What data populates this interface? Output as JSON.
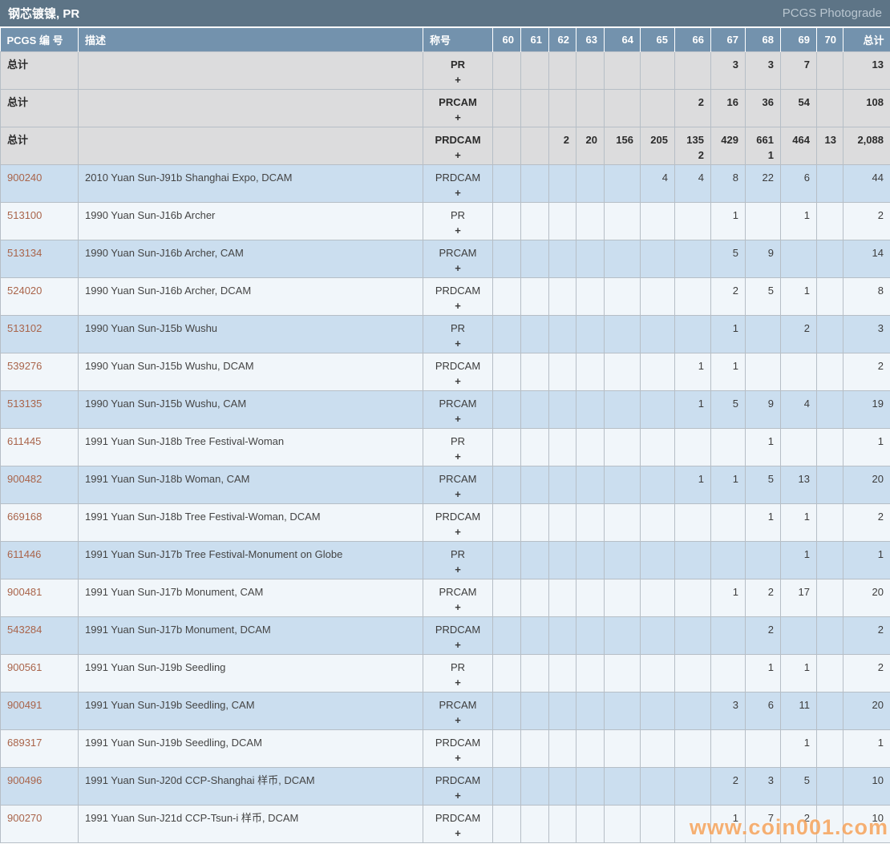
{
  "title_bar": {
    "title": "钢芯镀镍, PR",
    "right_label": "PCGS Photograde"
  },
  "watermark": "www.coin001.com",
  "colors": {
    "titlebar_bg": "#5d7486",
    "header_bg": "#7392ad",
    "total_row_bg": "#dcdcdd",
    "blue_row_bg": "#cbdeef",
    "white_row_bg": "#f1f6fa",
    "pcgs_link": "#a9644a",
    "watermark_orange": "#f7a055"
  },
  "table": {
    "headers": {
      "pcgs": "PCGS 编 号",
      "desc": "描述",
      "designation": "称号",
      "grades": [
        "60",
        "61",
        "62",
        "63",
        "64",
        "65",
        "66",
        "67",
        "68",
        "69",
        "70"
      ],
      "total": "总计"
    },
    "total_label": "总计",
    "plus_symbol": "+",
    "total_rows": [
      {
        "designation": "PR",
        "values": [
          "",
          "",
          "",
          "",
          "",
          "",
          "",
          "3",
          "3",
          "7",
          ""
        ],
        "plus": [
          "",
          "",
          "",
          "",
          "",
          "",
          "",
          "",
          "",
          "",
          ""
        ],
        "total": "13",
        "total_plus": ""
      },
      {
        "designation": "PRCAM",
        "values": [
          "",
          "",
          "",
          "",
          "",
          "",
          "2",
          "16",
          "36",
          "54",
          ""
        ],
        "plus": [
          "",
          "",
          "",
          "",
          "",
          "",
          "",
          "",
          "",
          "",
          ""
        ],
        "total": "108",
        "total_plus": ""
      },
      {
        "designation": "PRDCAM",
        "values": [
          "",
          "",
          "2",
          "20",
          "156",
          "205",
          "135",
          "429",
          "661",
          "464",
          "13"
        ],
        "plus": [
          "",
          "",
          "",
          "",
          "",
          "",
          "2",
          "",
          "1",
          "",
          ""
        ],
        "total": "2,088",
        "total_plus": ""
      }
    ],
    "rows": [
      {
        "pcgs": "900240",
        "desc": "2010 Yuan Sun-J91b Shanghai Expo, DCAM",
        "designation": "PRDCAM",
        "values": [
          "",
          "",
          "",
          "",
          "",
          "4",
          "4",
          "8",
          "22",
          "6",
          ""
        ],
        "plus": [
          "",
          "",
          "",
          "",
          "",
          "",
          "",
          "",
          "",
          "",
          ""
        ],
        "total": "44"
      },
      {
        "pcgs": "513100",
        "desc": "1990 Yuan Sun-J16b Archer",
        "designation": "PR",
        "values": [
          "",
          "",
          "",
          "",
          "",
          "",
          "",
          "1",
          "",
          "1",
          ""
        ],
        "plus": [
          "",
          "",
          "",
          "",
          "",
          "",
          "",
          "",
          "",
          "",
          ""
        ],
        "total": "2"
      },
      {
        "pcgs": "513134",
        "desc": "1990 Yuan Sun-J16b Archer, CAM",
        "designation": "PRCAM",
        "values": [
          "",
          "",
          "",
          "",
          "",
          "",
          "",
          "5",
          "9",
          "",
          ""
        ],
        "plus": [
          "",
          "",
          "",
          "",
          "",
          "",
          "",
          "",
          "",
          "",
          ""
        ],
        "total": "14"
      },
      {
        "pcgs": "524020",
        "desc": "1990 Yuan Sun-J16b Archer, DCAM",
        "designation": "PRDCAM",
        "values": [
          "",
          "",
          "",
          "",
          "",
          "",
          "",
          "2",
          "5",
          "1",
          ""
        ],
        "plus": [
          "",
          "",
          "",
          "",
          "",
          "",
          "",
          "",
          "",
          "",
          ""
        ],
        "total": "8"
      },
      {
        "pcgs": "513102",
        "desc": "1990 Yuan Sun-J15b Wushu",
        "designation": "PR",
        "values": [
          "",
          "",
          "",
          "",
          "",
          "",
          "",
          "1",
          "",
          "2",
          ""
        ],
        "plus": [
          "",
          "",
          "",
          "",
          "",
          "",
          "",
          "",
          "",
          "",
          ""
        ],
        "total": "3"
      },
      {
        "pcgs": "539276",
        "desc": "1990 Yuan Sun-J15b Wushu, DCAM",
        "designation": "PRDCAM",
        "values": [
          "",
          "",
          "",
          "",
          "",
          "",
          "1",
          "1",
          "",
          "",
          ""
        ],
        "plus": [
          "",
          "",
          "",
          "",
          "",
          "",
          "",
          "",
          "",
          "",
          ""
        ],
        "total": "2"
      },
      {
        "pcgs": "513135",
        "desc": "1990 Yuan Sun-J15b Wushu, CAM",
        "designation": "PRCAM",
        "values": [
          "",
          "",
          "",
          "",
          "",
          "",
          "1",
          "5",
          "9",
          "4",
          ""
        ],
        "plus": [
          "",
          "",
          "",
          "",
          "",
          "",
          "",
          "",
          "",
          "",
          ""
        ],
        "total": "19"
      },
      {
        "pcgs": "611445",
        "desc": "1991 Yuan Sun-J18b Tree Festival-Woman",
        "designation": "PR",
        "values": [
          "",
          "",
          "",
          "",
          "",
          "",
          "",
          "",
          "1",
          "",
          ""
        ],
        "plus": [
          "",
          "",
          "",
          "",
          "",
          "",
          "",
          "",
          "",
          "",
          ""
        ],
        "total": "1"
      },
      {
        "pcgs": "900482",
        "desc": "1991 Yuan Sun-J18b Woman, CAM",
        "designation": "PRCAM",
        "values": [
          "",
          "",
          "",
          "",
          "",
          "",
          "1",
          "1",
          "5",
          "13",
          ""
        ],
        "plus": [
          "",
          "",
          "",
          "",
          "",
          "",
          "",
          "",
          "",
          "",
          ""
        ],
        "total": "20"
      },
      {
        "pcgs": "669168",
        "desc": "1991 Yuan Sun-J18b Tree Festival-Woman, DCAM",
        "designation": "PRDCAM",
        "values": [
          "",
          "",
          "",
          "",
          "",
          "",
          "",
          "",
          "1",
          "1",
          ""
        ],
        "plus": [
          "",
          "",
          "",
          "",
          "",
          "",
          "",
          "",
          "",
          "",
          ""
        ],
        "total": "2"
      },
      {
        "pcgs": "611446",
        "desc": "1991 Yuan Sun-J17b Tree Festival-Monument on Globe",
        "designation": "PR",
        "values": [
          "",
          "",
          "",
          "",
          "",
          "",
          "",
          "",
          "",
          "1",
          ""
        ],
        "plus": [
          "",
          "",
          "",
          "",
          "",
          "",
          "",
          "",
          "",
          "",
          ""
        ],
        "total": "1"
      },
      {
        "pcgs": "900481",
        "desc": "1991 Yuan Sun-J17b Monument, CAM",
        "designation": "PRCAM",
        "values": [
          "",
          "",
          "",
          "",
          "",
          "",
          "",
          "1",
          "2",
          "17",
          ""
        ],
        "plus": [
          "",
          "",
          "",
          "",
          "",
          "",
          "",
          "",
          "",
          "",
          ""
        ],
        "total": "20"
      },
      {
        "pcgs": "543284",
        "desc": "1991 Yuan Sun-J17b Monument, DCAM",
        "designation": "PRDCAM",
        "values": [
          "",
          "",
          "",
          "",
          "",
          "",
          "",
          "",
          "2",
          "",
          ""
        ],
        "plus": [
          "",
          "",
          "",
          "",
          "",
          "",
          "",
          "",
          "",
          "",
          ""
        ],
        "total": "2"
      },
      {
        "pcgs": "900561",
        "desc": "1991 Yuan Sun-J19b Seedling",
        "designation": "PR",
        "values": [
          "",
          "",
          "",
          "",
          "",
          "",
          "",
          "",
          "1",
          "1",
          ""
        ],
        "plus": [
          "",
          "",
          "",
          "",
          "",
          "",
          "",
          "",
          "",
          "",
          ""
        ],
        "total": "2"
      },
      {
        "pcgs": "900491",
        "desc": "1991 Yuan Sun-J19b Seedling, CAM",
        "designation": "PRCAM",
        "values": [
          "",
          "",
          "",
          "",
          "",
          "",
          "",
          "3",
          "6",
          "11",
          ""
        ],
        "plus": [
          "",
          "",
          "",
          "",
          "",
          "",
          "",
          "",
          "",
          "",
          ""
        ],
        "total": "20"
      },
      {
        "pcgs": "689317",
        "desc": "1991 Yuan Sun-J19b Seedling, DCAM",
        "designation": "PRDCAM",
        "values": [
          "",
          "",
          "",
          "",
          "",
          "",
          "",
          "",
          "",
          "1",
          ""
        ],
        "plus": [
          "",
          "",
          "",
          "",
          "",
          "",
          "",
          "",
          "",
          "",
          ""
        ],
        "total": "1"
      },
      {
        "pcgs": "900496",
        "desc": "1991 Yuan Sun-J20d CCP-Shanghai 样币, DCAM",
        "designation": "PRDCAM",
        "values": [
          "",
          "",
          "",
          "",
          "",
          "",
          "",
          "2",
          "3",
          "5",
          ""
        ],
        "plus": [
          "",
          "",
          "",
          "",
          "",
          "",
          "",
          "",
          "",
          "",
          ""
        ],
        "total": "10"
      },
      {
        "pcgs": "900270",
        "desc": "1991 Yuan Sun-J21d CCP-Tsun-i 样币, DCAM",
        "designation": "PRDCAM",
        "values": [
          "",
          "",
          "",
          "",
          "",
          "",
          "",
          "1",
          "7",
          "2",
          ""
        ],
        "plus": [
          "",
          "",
          "",
          "",
          "",
          "",
          "",
          "",
          "",
          "",
          ""
        ],
        "total": "10"
      }
    ]
  }
}
